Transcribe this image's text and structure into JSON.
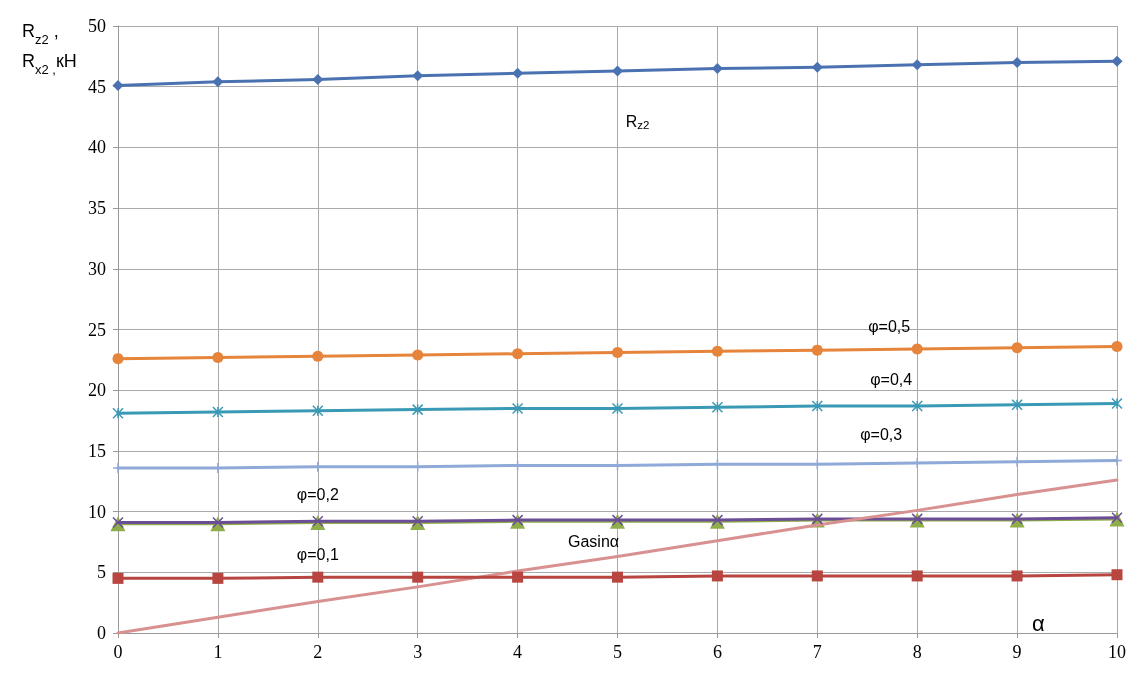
{
  "chart_data": {
    "type": "line",
    "xlabel": "α",
    "ylabel": "R$_{z2}$ , R$_{x2 ,}$кН",
    "x": [
      0,
      1,
      2,
      3,
      4,
      5,
      6,
      7,
      8,
      9,
      10
    ],
    "xlim": [
      0,
      10
    ],
    "xticks": [
      0,
      1,
      2,
      3,
      4,
      5,
      6,
      7,
      8,
      9,
      10
    ],
    "ylim": [
      0,
      50
    ],
    "yticks": [
      0,
      5,
      10,
      15,
      20,
      25,
      30,
      35,
      40,
      45,
      50
    ],
    "grid": true,
    "legend": false,
    "series": [
      {
        "name": "R$_{z2}$",
        "color": "#4a72b0",
        "marker": "diamond",
        "values": [
          45.1,
          45.4,
          45.6,
          45.9,
          46.1,
          46.3,
          46.5,
          46.6,
          46.8,
          47.0,
          47.1
        ]
      },
      {
        "name": "φ=0,5",
        "color": "#e5843a",
        "marker": "circle",
        "values": [
          22.6,
          22.7,
          22.8,
          22.9,
          23.0,
          23.1,
          23.2,
          23.3,
          23.4,
          23.5,
          23.6
        ]
      },
      {
        "name": "φ=0,4",
        "color": "#3a9ab5",
        "marker": "cross",
        "values": [
          18.1,
          18.2,
          18.3,
          18.4,
          18.5,
          18.5,
          18.6,
          18.7,
          18.7,
          18.8,
          18.9
        ]
      },
      {
        "name": "φ=0,3",
        "color": "#8fa9d8",
        "marker": "cross",
        "values": [
          13.6,
          13.6,
          13.7,
          13.7,
          13.8,
          13.8,
          13.9,
          13.9,
          14.0,
          14.1,
          14.2
        ]
      },
      {
        "color": "#8fae4a",
        "marker": "triangle",
        "values": [
          9.0,
          9.0,
          9.1,
          9.1,
          9.2,
          9.2,
          9.2,
          9.3,
          9.3,
          9.3,
          9.4
        ]
      },
      {
        "name": "φ=0,2",
        "color": "#6b4e95",
        "marker": "cross",
        "values": [
          9.1,
          9.1,
          9.2,
          9.2,
          9.3,
          9.3,
          9.3,
          9.4,
          9.4,
          9.4,
          9.5
        ]
      },
      {
        "name": "Gasinα",
        "color": "#d89090",
        "marker": "none",
        "values": [
          0,
          1.3,
          2.6,
          3.8,
          5.1,
          6.3,
          7.6,
          8.9,
          10.1,
          11.4,
          12.6
        ]
      },
      {
        "name": "φ=0,1",
        "color": "#b84540",
        "marker": "square",
        "values": [
          4.5,
          4.5,
          4.6,
          4.6,
          4.6,
          4.6,
          4.7,
          4.7,
          4.7,
          4.7,
          4.8
        ]
      }
    ]
  }
}
